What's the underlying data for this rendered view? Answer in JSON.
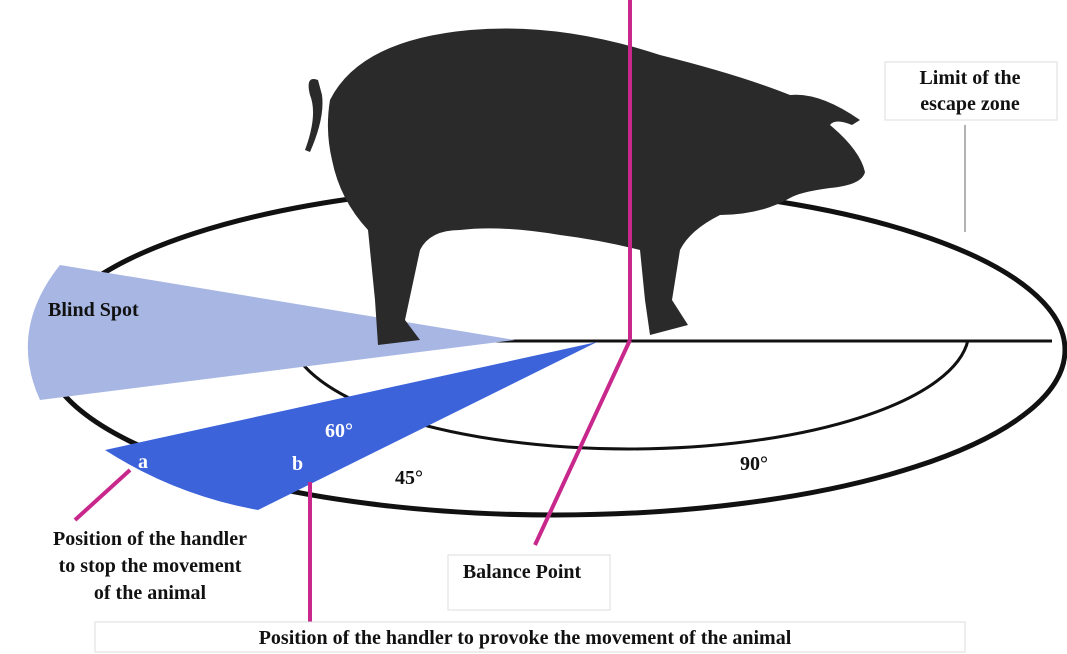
{
  "labels": {
    "escape_limit": [
      "Limit of the",
      "escape zone"
    ],
    "blind_spot": "Blind Spot",
    "angle_60": "60°",
    "point_a": "a",
    "point_b": "b",
    "angle_45": "45°",
    "angle_90": "90°",
    "stop_position": [
      "Position of the handler",
      "to stop the movement",
      "of the animal"
    ],
    "balance_point": "Balance Point",
    "provoke_position": "Position of the handler to provoke the movement of the animal"
  }
}
